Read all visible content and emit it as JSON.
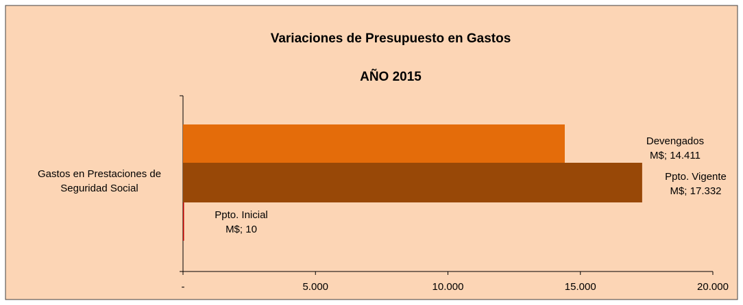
{
  "chart_data": {
    "type": "bar",
    "orientation": "horizontal",
    "title": "Variaciones de Presupuesto en Gastos",
    "subtitle": "AÑO 2015",
    "categories": [
      "Gastos en Prestaciones de Seguridad Social"
    ],
    "series": [
      {
        "name": "Devengados",
        "color": "#e46c0a",
        "values": [
          14411
        ],
        "value_labels": [
          "M$;  14.411"
        ]
      },
      {
        "name": "Ppto. Vigente",
        "color": "#984807",
        "values": [
          17332
        ],
        "value_labels": [
          "M$;  17.332"
        ]
      },
      {
        "name": "Ppto. Inicial",
        "color": "#c00000",
        "values": [
          10
        ],
        "value_labels": [
          "M$;  10"
        ]
      }
    ],
    "xlim": [
      0,
      20000
    ],
    "xticks": [
      {
        "value": 0,
        "label": "-"
      },
      {
        "value": 5000,
        "label": "5.000"
      },
      {
        "value": 10000,
        "label": "10.000"
      },
      {
        "value": 15000,
        "label": "15.000"
      },
      {
        "value": 20000,
        "label": "20.000"
      }
    ],
    "grid": false
  }
}
